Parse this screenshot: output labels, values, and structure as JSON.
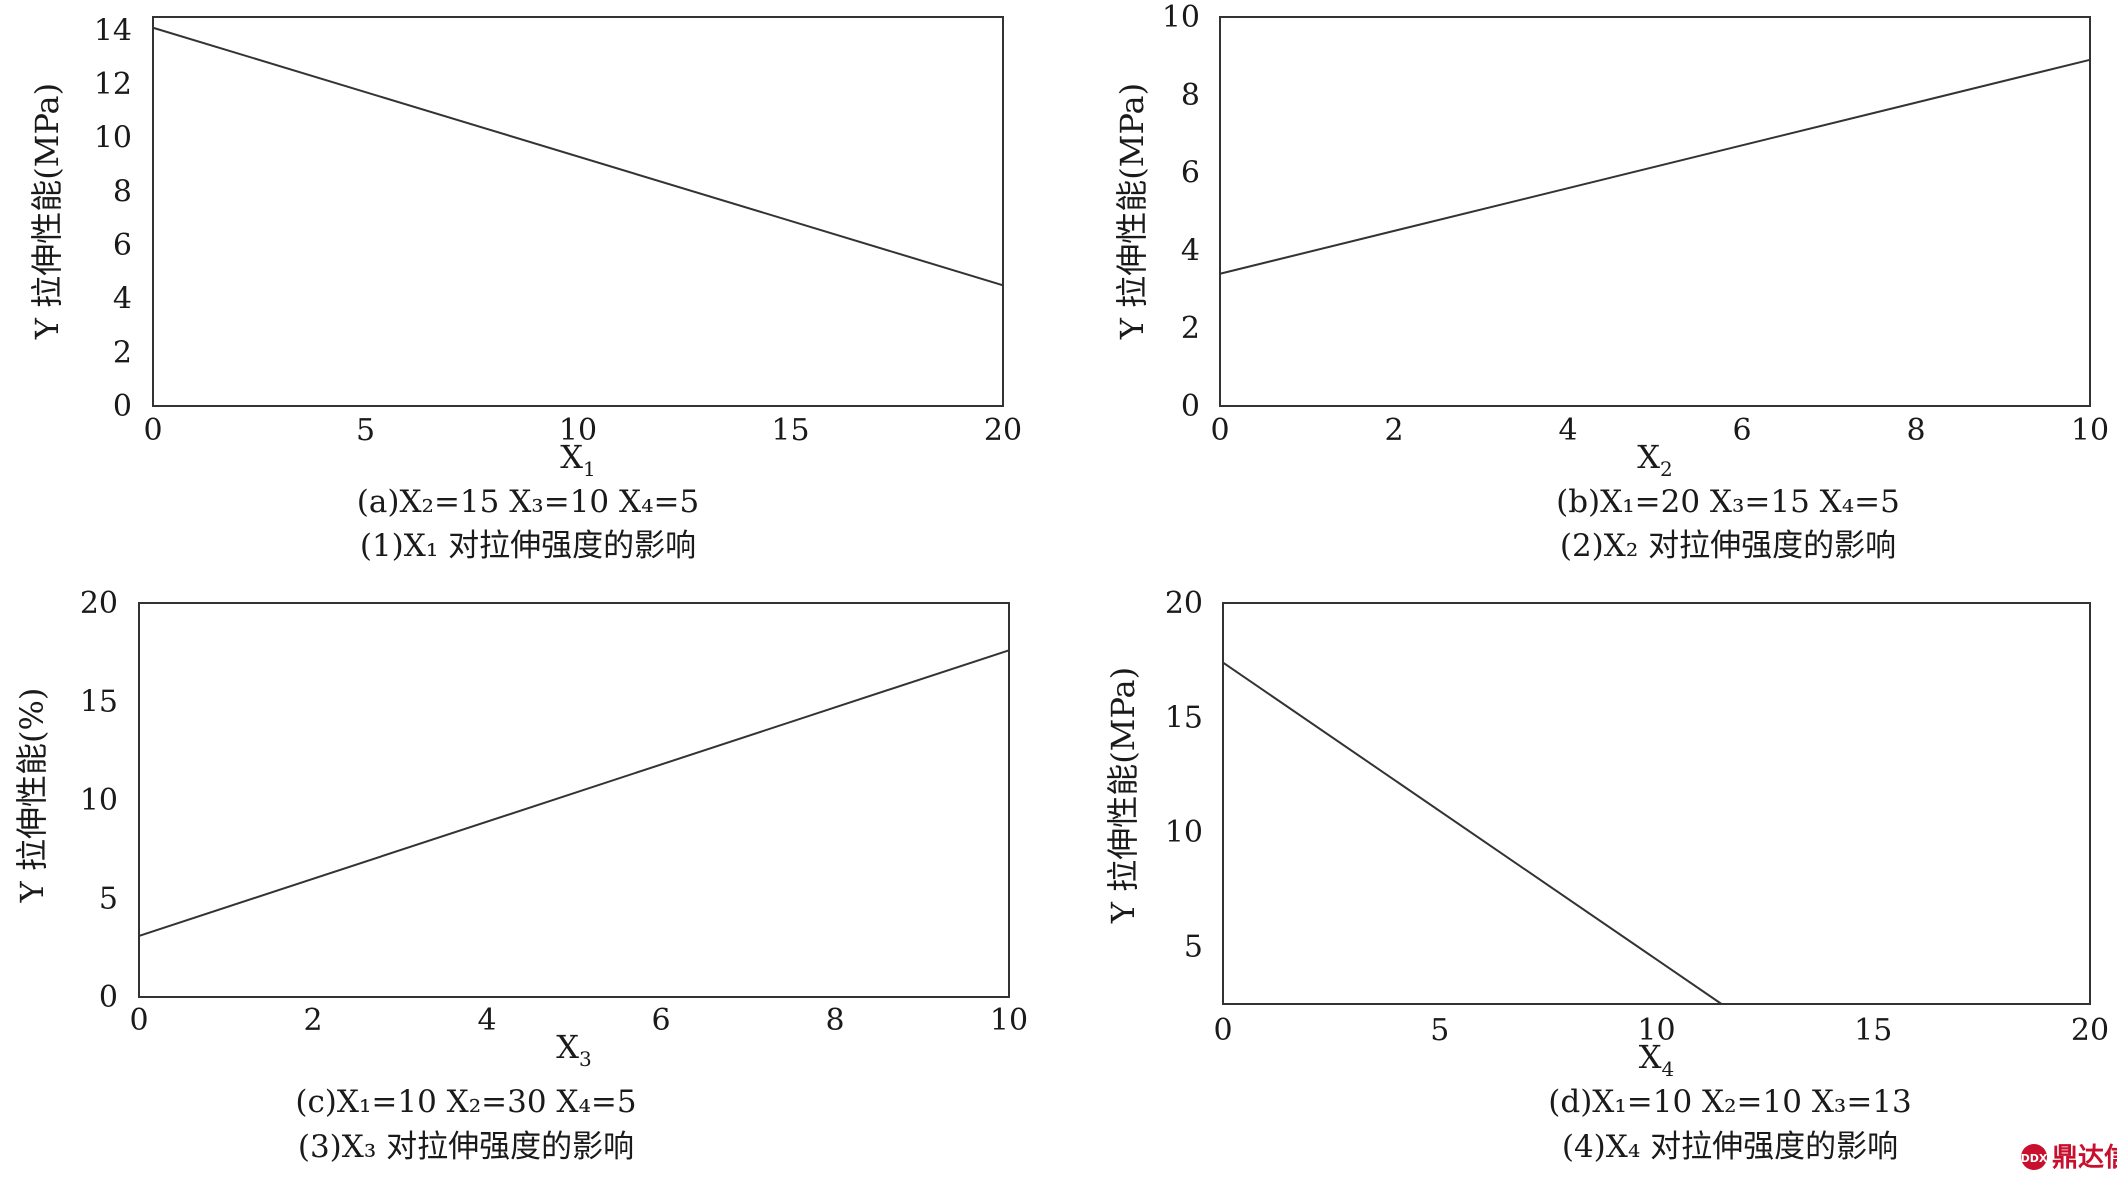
{
  "chart_data": [
    {
      "type": "line",
      "xlabel": "X",
      "xlabel_sub": "1",
      "ylabel": "Y 拉伸性能(MPa)",
      "xlim": [
        0,
        20
      ],
      "ylim": [
        0,
        14.5
      ],
      "xticks": [
        "0",
        "5",
        "10",
        "15",
        "20"
      ],
      "yticks": [
        "0",
        "2",
        "4",
        "6",
        "8",
        "10",
        "12",
        "14"
      ],
      "series": [
        {
          "x": [
            0,
            20
          ],
          "y": [
            14.1,
            4.5
          ]
        }
      ],
      "condition": "(a)X₂=15   X₃=10   X₄=5",
      "caption": "(1)X₁ 对拉伸强度的影响"
    },
    {
      "type": "line",
      "xlabel": "X",
      "xlabel_sub": "2",
      "ylabel": "Y 拉伸性能(MPa)",
      "xlim": [
        0,
        10
      ],
      "ylim": [
        0,
        10
      ],
      "xticks": [
        "0",
        "2",
        "4",
        "6",
        "8",
        "10"
      ],
      "yticks": [
        "0",
        "2",
        "4",
        "6",
        "8",
        "10"
      ],
      "series": [
        {
          "x": [
            0,
            10
          ],
          "y": [
            3.4,
            8.9
          ]
        }
      ],
      "condition": "(b)X₁=20   X₃=15   X₄=5",
      "caption": "(2)X₂ 对拉伸强度的影响"
    },
    {
      "type": "line",
      "xlabel": "X",
      "xlabel_sub": "3",
      "ylabel": "Y 拉伸性能(%)",
      "xlim": [
        0,
        10
      ],
      "ylim": [
        0,
        20
      ],
      "xticks": [
        "0",
        "2",
        "4",
        "6",
        "8",
        "10"
      ],
      "yticks": [
        "0",
        "5",
        "10",
        "15",
        "20"
      ],
      "series": [
        {
          "x": [
            0,
            10
          ],
          "y": [
            3.1,
            17.6
          ]
        }
      ],
      "condition": "(c)X₁=10   X₂=30   X₄=5",
      "caption": "(3)X₃ 对拉伸强度的影响"
    },
    {
      "type": "line",
      "xlabel": "X",
      "xlabel_sub": "4",
      "ylabel": "Y 拉伸性能(MPa)",
      "xlim": [
        0,
        20
      ],
      "ylim": [
        2.5,
        20
      ],
      "xticks": [
        "0",
        "5",
        "10",
        "15",
        "20"
      ],
      "yticks": [
        "5",
        "10",
        "15",
        "20"
      ],
      "series": [
        {
          "x": [
            0,
            11.5
          ],
          "y": [
            17.4,
            2.5
          ]
        }
      ],
      "condition": "(d)X₁=10   X₂=10   X₃=13",
      "caption": "(4)X₄ 对拉伸强度的影响"
    }
  ],
  "watermark": {
    "text": "鼎达信",
    "logo_text": "DDX",
    "color": "#c8102e"
  }
}
